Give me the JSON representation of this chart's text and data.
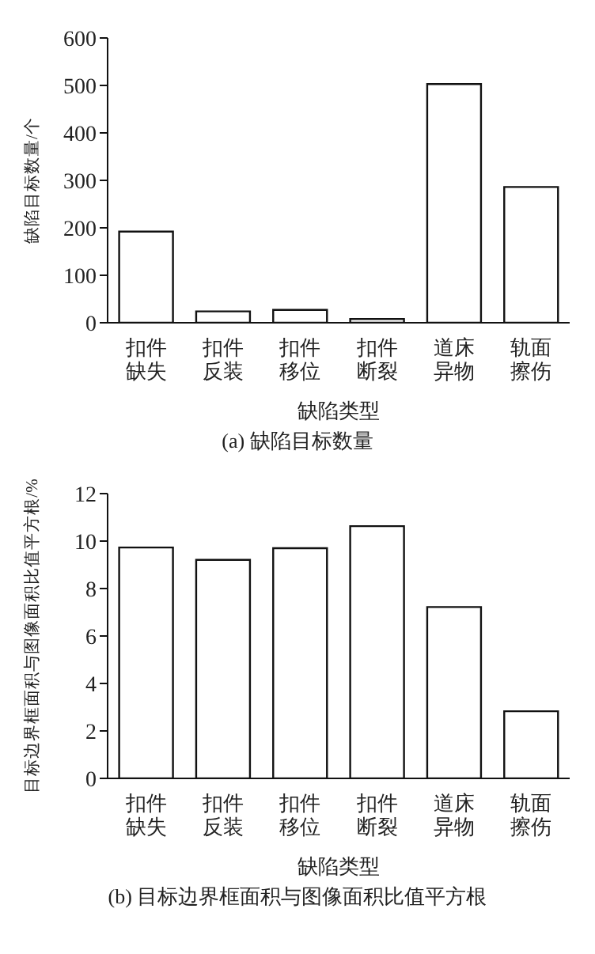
{
  "chart_data": [
    {
      "type": "bar",
      "title": "(a)  缺陷目标数量",
      "xlabel": "缺陷类型",
      "ylabel": "缺陷目标数量/个",
      "categories": [
        "扣件缺失",
        "扣件反装",
        "扣件移位",
        "扣件断裂",
        "道床异物",
        "轨面擦伤"
      ],
      "values": [
        192,
        24,
        27,
        8,
        503,
        286
      ],
      "color": "#ffffff",
      "ylim": [
        0,
        600
      ],
      "yticks": [
        0,
        100,
        200,
        300,
        400,
        500,
        600
      ],
      "grid": false,
      "legend": false
    },
    {
      "type": "bar",
      "title": "(b)  目标边界框面积与图像面积比值平方根",
      "xlabel": "缺陷类型",
      "ylabel": "目标边界框面积与图像面积比值平方根/%",
      "categories": [
        "扣件缺失",
        "扣件反装",
        "扣件移位",
        "扣件断裂",
        "道床异物",
        "轨面擦伤"
      ],
      "values": [
        9.73,
        9.21,
        9.7,
        10.63,
        7.22,
        2.83
      ],
      "color": "#ffffff",
      "ylim": [
        0,
        12
      ],
      "yticks": [
        0,
        2,
        4,
        6,
        8,
        10,
        12
      ],
      "grid": false,
      "legend": false
    }
  ]
}
